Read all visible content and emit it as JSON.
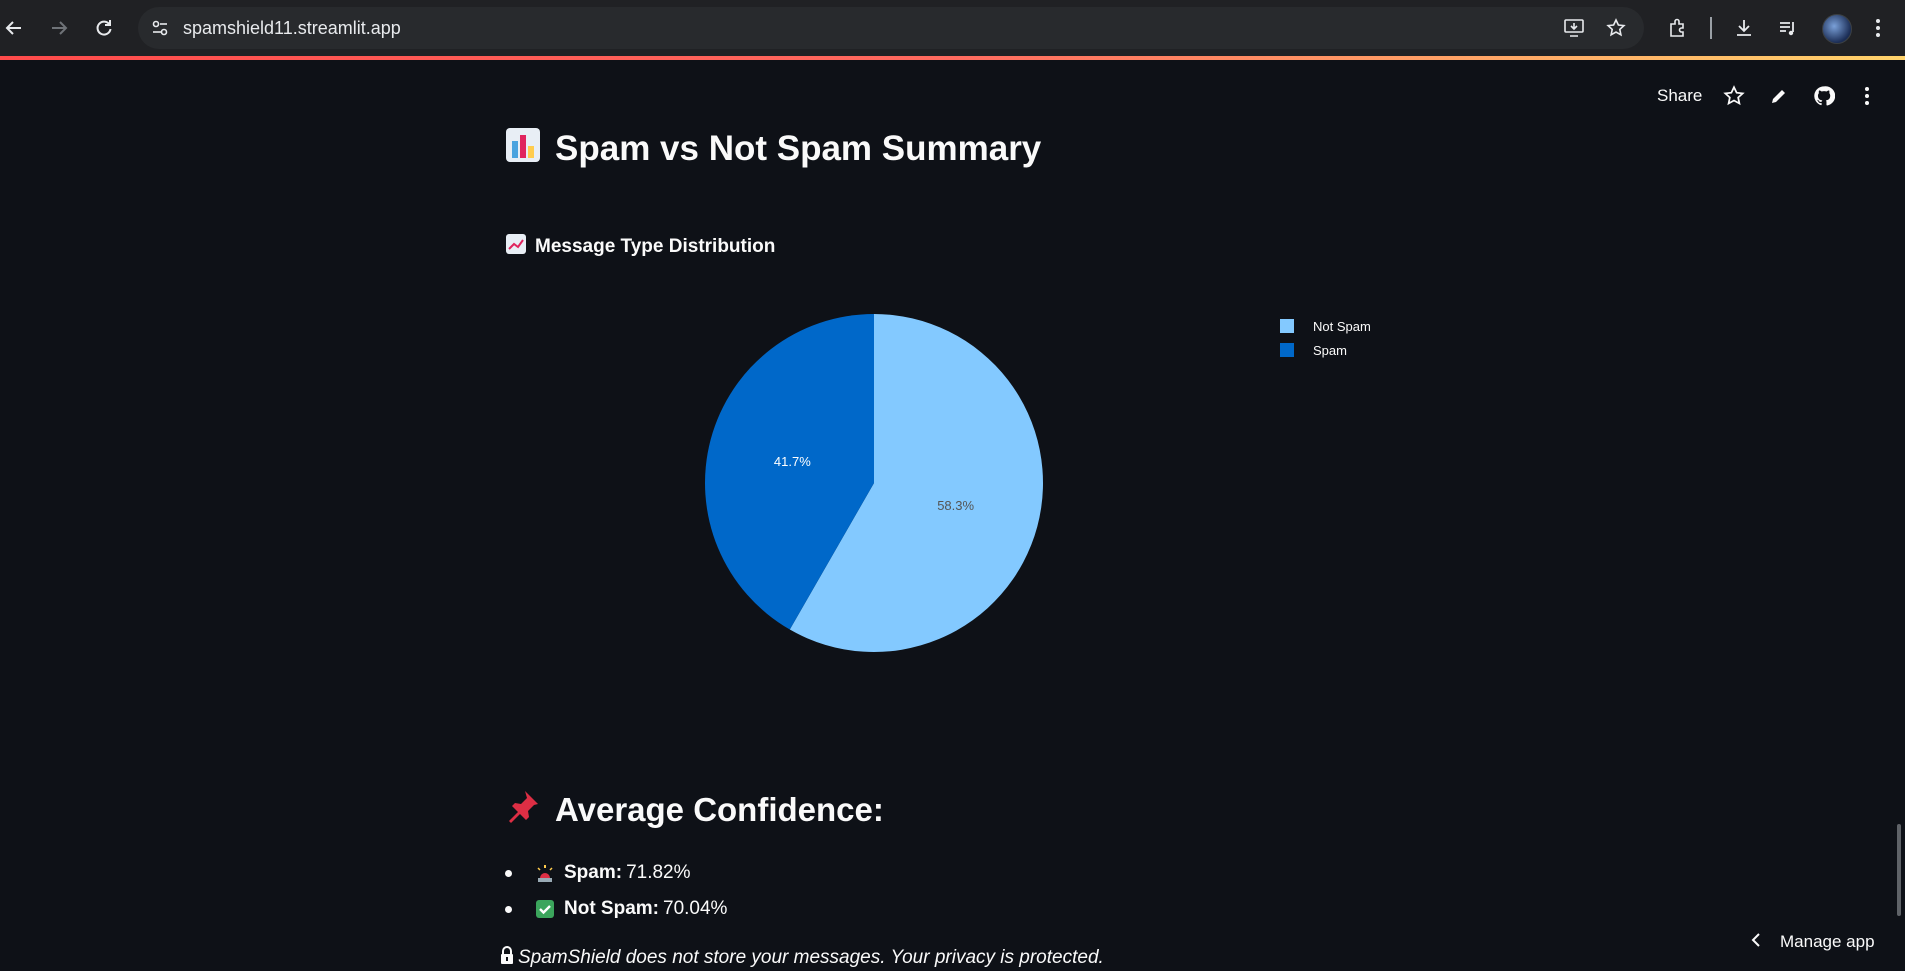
{
  "browser": {
    "url": "spamshield11.streamlit.app",
    "icons": [
      "back-arrow-icon",
      "forward-arrow-icon",
      "reload-icon",
      "site-settings-icon",
      "install-app-icon",
      "bookmark-star-icon",
      "extensions-icon",
      "download-icon",
      "media-controls-icon",
      "profile-avatar",
      "kebab-menu-icon"
    ]
  },
  "st_toolbar": {
    "share_label": "Share",
    "icons": [
      "star-icon",
      "edit-pencil-icon",
      "github-icon",
      "more-vert-icon"
    ]
  },
  "summary": {
    "title": "Spam vs Not Spam Summary",
    "emoji": "bar-chart-emoji"
  },
  "distribution": {
    "title": "Message Type Distribution",
    "emoji": "chart-increasing-emoji"
  },
  "chart_data": {
    "type": "pie",
    "labels": [
      "Not Spam",
      "Spam"
    ],
    "values": [
      58.3,
      41.7
    ],
    "value_labels": [
      "58.3%",
      "41.7%"
    ],
    "colors": [
      "#83c9ff",
      "#0068c9"
    ],
    "label_colors": [
      "#555555",
      "#ffffff"
    ],
    "legend": "right",
    "title": ""
  },
  "confidence": {
    "title": "Average Confidence:",
    "emoji": "pushpin-emoji",
    "items": [
      {
        "label": "Spam:",
        "value": "71.82%",
        "emoji": "police-light-emoji"
      },
      {
        "label": "Not Spam:",
        "value": "70.04%",
        "emoji": "check-mark-emoji"
      }
    ]
  },
  "footer": {
    "privacy_text": "SpamShield does not store your messages. Your privacy is protected.",
    "manage_app": "Manage app"
  }
}
